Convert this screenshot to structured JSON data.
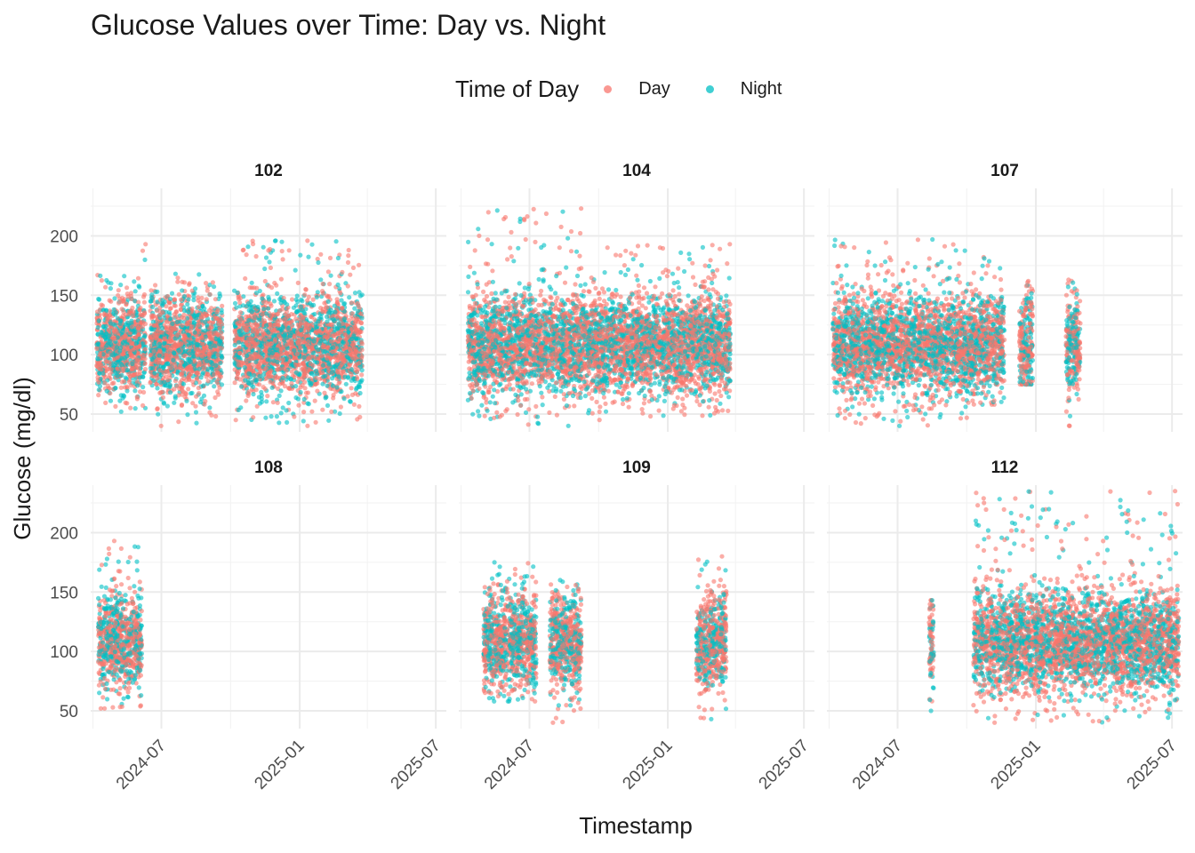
{
  "chart_data": {
    "type": "scatter",
    "title": "Glucose Values over Time: Day vs. Night",
    "xlabel": "Timestamp",
    "ylabel": "Glucose (mg/dl)",
    "legend": {
      "title": "Time of Day",
      "position": "top",
      "entries": [
        {
          "name": "Day",
          "color": "#F8766D"
        },
        {
          "name": "Night",
          "color": "#00BFC4"
        }
      ]
    },
    "x_ticks": [
      "2024-07",
      "2025-01",
      "2025-07"
    ],
    "x_tick_dates": [
      "2024-07-01",
      "2025-01-01",
      "2025-07-01"
    ],
    "xlim": [
      "2024-03-29",
      "2025-07-15"
    ],
    "y_ticks": [
      50,
      100,
      150,
      200
    ],
    "ylim": [
      35,
      240
    ],
    "grid": true,
    "facets": [
      {
        "id": "102",
        "segments": [
          {
            "start": "2024-04-06",
            "end": "2024-06-05",
            "min": 52,
            "max": 167
          },
          {
            "start": "2024-06-06",
            "end": "2024-06-10",
            "min": 55,
            "max": 193
          },
          {
            "start": "2024-06-16",
            "end": "2024-09-20",
            "min": 40,
            "max": 168
          },
          {
            "start": "2024-10-06",
            "end": "2025-03-25",
            "min": 40,
            "max": 196
          }
        ]
      },
      {
        "id": "104",
        "segments": [
          {
            "start": "2024-04-10",
            "end": "2024-09-10",
            "min": 40,
            "max": 223
          },
          {
            "start": "2024-09-10",
            "end": "2025-03-25",
            "min": 45,
            "max": 193
          }
        ]
      },
      {
        "id": "107",
        "segments": [
          {
            "start": "2024-04-06",
            "end": "2024-10-05",
            "min": 40,
            "max": 197
          },
          {
            "start": "2024-10-05",
            "end": "2024-11-20",
            "min": 58,
            "max": 182
          },
          {
            "start": "2024-12-10",
            "end": "2024-12-28",
            "min": 75,
            "max": 162
          },
          {
            "start": "2025-02-10",
            "end": "2025-03-01",
            "min": 40,
            "max": 163
          }
        ]
      },
      {
        "id": "108",
        "segments": [
          {
            "start": "2024-04-08",
            "end": "2024-06-05",
            "min": 52,
            "max": 193
          }
        ]
      },
      {
        "id": "109",
        "segments": [
          {
            "start": "2024-05-01",
            "end": "2024-07-10",
            "min": 58,
            "max": 175
          },
          {
            "start": "2024-07-28",
            "end": "2024-09-08",
            "min": 40,
            "max": 160
          },
          {
            "start": "2025-02-08",
            "end": "2025-03-20",
            "min": 43,
            "max": 180
          }
        ]
      },
      {
        "id": "112",
        "segments": [
          {
            "start": "2024-08-12",
            "end": "2024-08-18",
            "min": 50,
            "max": 143
          },
          {
            "start": "2024-10-10",
            "end": "2025-07-10",
            "min": 40,
            "max": 235
          }
        ]
      }
    ]
  }
}
